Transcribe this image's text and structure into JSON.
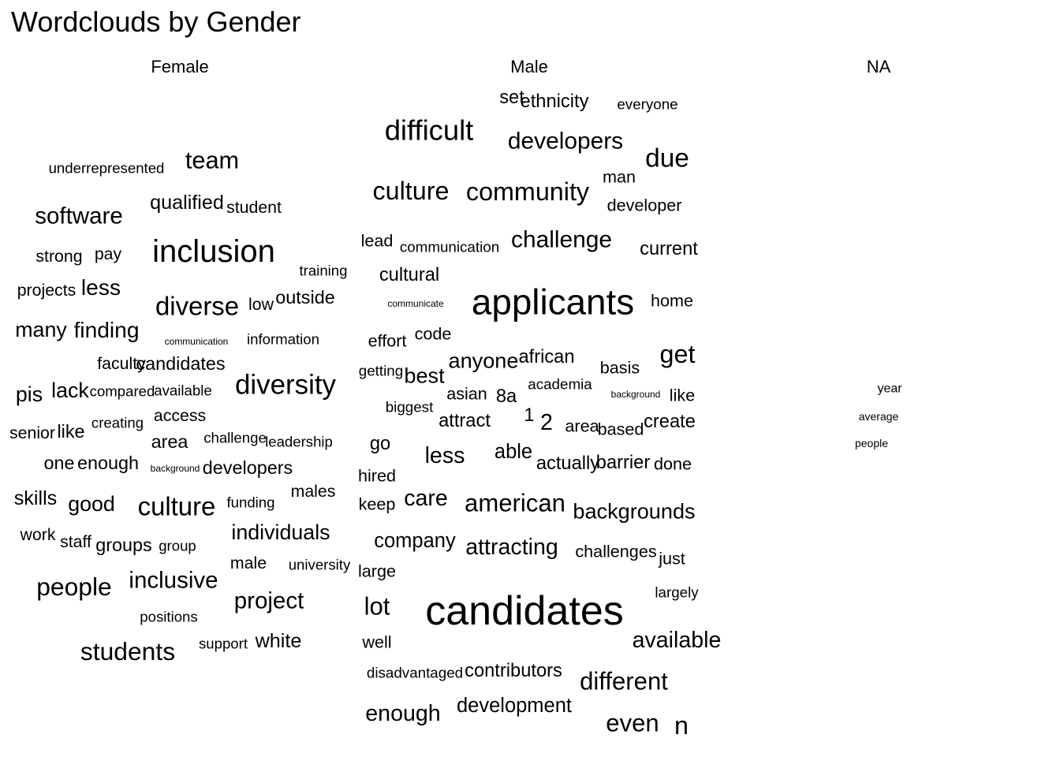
{
  "chart_data": {
    "type": "wordcloud",
    "title": "Wordclouds by Gender",
    "facets": [
      {
        "name": "Female",
        "words": [
          {
            "word": "inclusion",
            "freq": 20
          },
          {
            "word": "diversity",
            "freq": 14
          },
          {
            "word": "diverse",
            "freq": 12
          },
          {
            "word": "culture",
            "freq": 12
          },
          {
            "word": "students",
            "freq": 11
          },
          {
            "word": "people",
            "freq": 11
          },
          {
            "word": "team",
            "freq": 10
          },
          {
            "word": "inclusive",
            "freq": 9
          },
          {
            "word": "project",
            "freq": 9
          },
          {
            "word": "software",
            "freq": 9
          },
          {
            "word": "finding",
            "freq": 8
          },
          {
            "word": "less",
            "freq": 8
          },
          {
            "word": "many",
            "freq": 7
          },
          {
            "word": "individuals",
            "freq": 7
          },
          {
            "word": "good",
            "freq": 7
          },
          {
            "word": "lack",
            "freq": 7
          },
          {
            "word": "pis",
            "freq": 7
          },
          {
            "word": "qualified",
            "freq": 6
          },
          {
            "word": "white",
            "freq": 6
          },
          {
            "word": "skills",
            "freq": 6
          },
          {
            "word": "groups",
            "freq": 5
          },
          {
            "word": "outside",
            "freq": 5
          },
          {
            "word": "candidates",
            "freq": 5
          },
          {
            "word": "area",
            "freq": 5
          },
          {
            "word": "like",
            "freq": 5
          },
          {
            "word": "one",
            "freq": 5
          },
          {
            "word": "enough",
            "freq": 5
          },
          {
            "word": "developers",
            "freq": 5
          },
          {
            "word": "access",
            "freq": 4
          },
          {
            "word": "projects",
            "freq": 4
          },
          {
            "word": "low",
            "freq": 4
          },
          {
            "word": "pay",
            "freq": 4
          },
          {
            "word": "staff",
            "freq": 4
          },
          {
            "word": "work",
            "freq": 4
          },
          {
            "word": "male",
            "freq": 4
          },
          {
            "word": "males",
            "freq": 4
          },
          {
            "word": "strong",
            "freq": 4
          },
          {
            "word": "senior",
            "freq": 4
          },
          {
            "word": "faculty",
            "freq": 4
          },
          {
            "word": "student",
            "freq": 4
          },
          {
            "word": "support",
            "freq": 3
          },
          {
            "word": "group",
            "freq": 3
          },
          {
            "word": "funding",
            "freq": 3
          },
          {
            "word": "training",
            "freq": 3
          },
          {
            "word": "information",
            "freq": 3
          },
          {
            "word": "available",
            "freq": 3
          },
          {
            "word": "creating",
            "freq": 3
          },
          {
            "word": "compared",
            "freq": 3
          },
          {
            "word": "underrepresented",
            "freq": 3
          },
          {
            "word": "positions",
            "freq": 3
          },
          {
            "word": "challenge",
            "freq": 3
          },
          {
            "word": "leadership",
            "freq": 3
          },
          {
            "word": "university",
            "freq": 3
          },
          {
            "word": "background",
            "freq": 2
          },
          {
            "word": "communication",
            "freq": 2
          }
        ]
      },
      {
        "name": "Male",
        "words": [
          {
            "word": "candidates",
            "freq": 40
          },
          {
            "word": "applicants",
            "freq": 30
          },
          {
            "word": "difficult",
            "freq": 18
          },
          {
            "word": "due",
            "freq": 15
          },
          {
            "word": "get",
            "freq": 14
          },
          {
            "word": "culture",
            "freq": 14
          },
          {
            "word": "community",
            "freq": 14
          },
          {
            "word": "n",
            "freq": 14
          },
          {
            "word": "even",
            "freq": 13
          },
          {
            "word": "different",
            "freq": 13
          },
          {
            "word": "american",
            "freq": 13
          },
          {
            "word": "lot",
            "freq": 13
          },
          {
            "word": "challenge",
            "freq": 12
          },
          {
            "word": "developers",
            "freq": 12
          },
          {
            "word": "attracting",
            "freq": 11
          },
          {
            "word": "enough",
            "freq": 11
          },
          {
            "word": "less",
            "freq": 11
          },
          {
            "word": "available",
            "freq": 11
          },
          {
            "word": "care",
            "freq": 11
          },
          {
            "word": "2",
            "freq": 11
          },
          {
            "word": "backgrounds",
            "freq": 10
          },
          {
            "word": "anyone",
            "freq": 10
          },
          {
            "word": "best",
            "freq": 10
          },
          {
            "word": "able",
            "freq": 9
          },
          {
            "word": "company",
            "freq": 9
          },
          {
            "word": "development",
            "freq": 9
          },
          {
            "word": "contributors",
            "freq": 8
          },
          {
            "word": "cultural",
            "freq": 8
          },
          {
            "word": "create",
            "freq": 8
          },
          {
            "word": "barrier",
            "freq": 8
          },
          {
            "word": "current",
            "freq": 8
          },
          {
            "word": "attract",
            "freq": 8
          },
          {
            "word": "african",
            "freq": 8
          },
          {
            "word": "actually",
            "freq": 8
          },
          {
            "word": "8a",
            "freq": 8
          },
          {
            "word": "set",
            "freq": 8
          },
          {
            "word": "ethnicity",
            "freq": 8
          },
          {
            "word": "go",
            "freq": 8
          },
          {
            "word": "1",
            "freq": 8
          },
          {
            "word": "area",
            "freq": 7
          },
          {
            "word": "like",
            "freq": 7
          },
          {
            "word": "just",
            "freq": 7
          },
          {
            "word": "done",
            "freq": 7
          },
          {
            "word": "basis",
            "freq": 7
          },
          {
            "word": "lead",
            "freq": 7
          },
          {
            "word": "effort",
            "freq": 7
          },
          {
            "word": "developer",
            "freq": 7
          },
          {
            "word": "man",
            "freq": 7
          },
          {
            "word": "asian",
            "freq": 7
          },
          {
            "word": "code",
            "freq": 7
          },
          {
            "word": "home",
            "freq": 7
          },
          {
            "word": "hired",
            "freq": 7
          },
          {
            "word": "well",
            "freq": 7
          },
          {
            "word": "large",
            "freq": 7
          },
          {
            "word": "keep",
            "freq": 7
          },
          {
            "word": "based",
            "freq": 7
          },
          {
            "word": "challenges",
            "freq": 7
          },
          {
            "word": "getting",
            "freq": 6
          },
          {
            "word": "communication",
            "freq": 6
          },
          {
            "word": "disadvantaged",
            "freq": 6
          },
          {
            "word": "largely",
            "freq": 6
          },
          {
            "word": "biggest",
            "freq": 6
          },
          {
            "word": "academia",
            "freq": 6
          },
          {
            "word": "everyone",
            "freq": 6
          },
          {
            "word": "communicate",
            "freq": 5
          },
          {
            "word": "background",
            "freq": 5
          }
        ]
      },
      {
        "name": "NA",
        "words": [
          {
            "word": "year",
            "freq": 3
          },
          {
            "word": "average",
            "freq": 2
          },
          {
            "word": "people",
            "freq": 2
          }
        ]
      }
    ]
  }
}
